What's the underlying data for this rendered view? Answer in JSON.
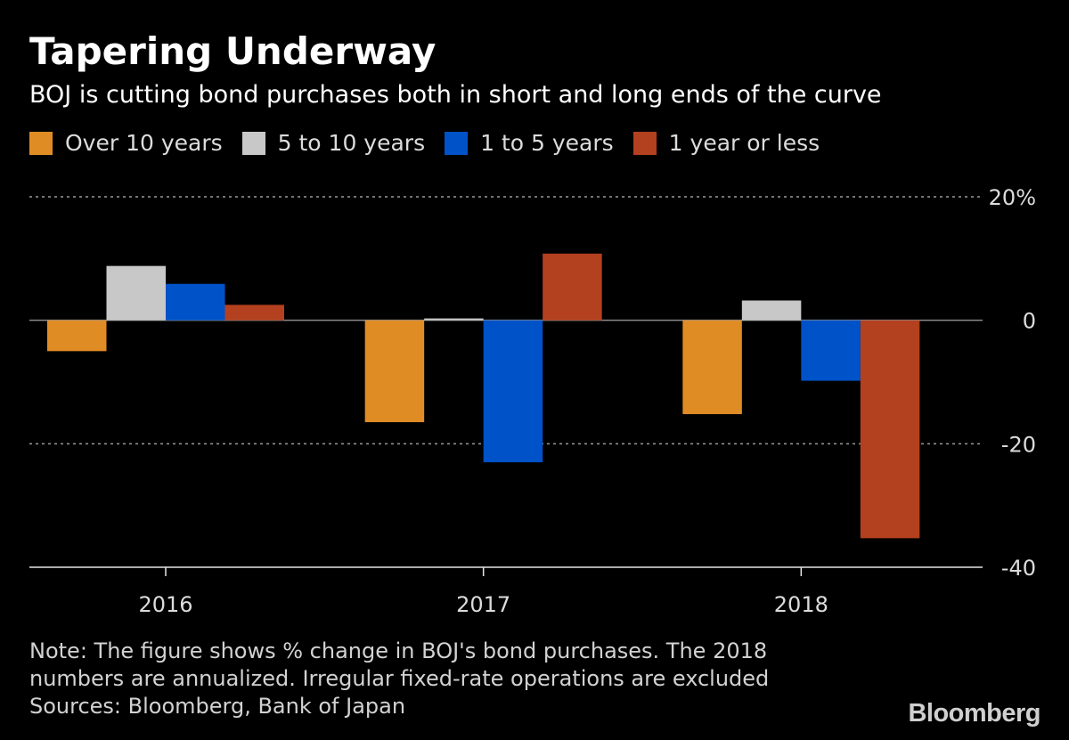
{
  "title": "Tapering Underway",
  "subtitle": "BOJ is cutting bond purchases both in short and long ends of the curve",
  "legend": [
    {
      "label": "Over 10 years",
      "color": "#e08c25"
    },
    {
      "label": "5 to 10 years",
      "color": "#c8c8c8"
    },
    {
      "label": "1 to 5 years",
      "color": "#0052c8"
    },
    {
      "label": "1 year or less",
      "color": "#b3401f"
    }
  ],
  "notes": [
    "Note: The figure shows % change in BOJ's bond purchases. The 2018",
    "numbers are annualized. Irregular fixed-rate operations are excluded",
    "Sources: Bloomberg, Bank of Japan"
  ],
  "brand": "Bloomberg",
  "chart_data": {
    "type": "bar",
    "title": "Tapering Underway",
    "subtitle": "BOJ is cutting bond purchases both in short and long ends of the curve",
    "xlabel": "",
    "ylabel": "",
    "categories": [
      "2016",
      "2017",
      "2018"
    ],
    "series": [
      {
        "name": "Over 10 years",
        "color": "#e08c25",
        "values": [
          -5.0,
          -16.5,
          -15.2
        ]
      },
      {
        "name": "5 to 10 years",
        "color": "#c8c8c8",
        "values": [
          8.8,
          0.3,
          3.2
        ]
      },
      {
        "name": "1 to 5 years",
        "color": "#0052c8",
        "values": [
          5.9,
          -23.0,
          -9.8
        ]
      },
      {
        "name": "1 year or less",
        "color": "#b3401f",
        "values": [
          2.5,
          10.8,
          -35.3
        ]
      }
    ],
    "ylim": [
      -40,
      20
    ],
    "yticks": [
      20,
      0,
      -20,
      -40
    ],
    "ytick_labels": [
      "20%",
      "0",
      "-20",
      "-40"
    ],
    "grid": true,
    "legend_position": "top-left"
  }
}
